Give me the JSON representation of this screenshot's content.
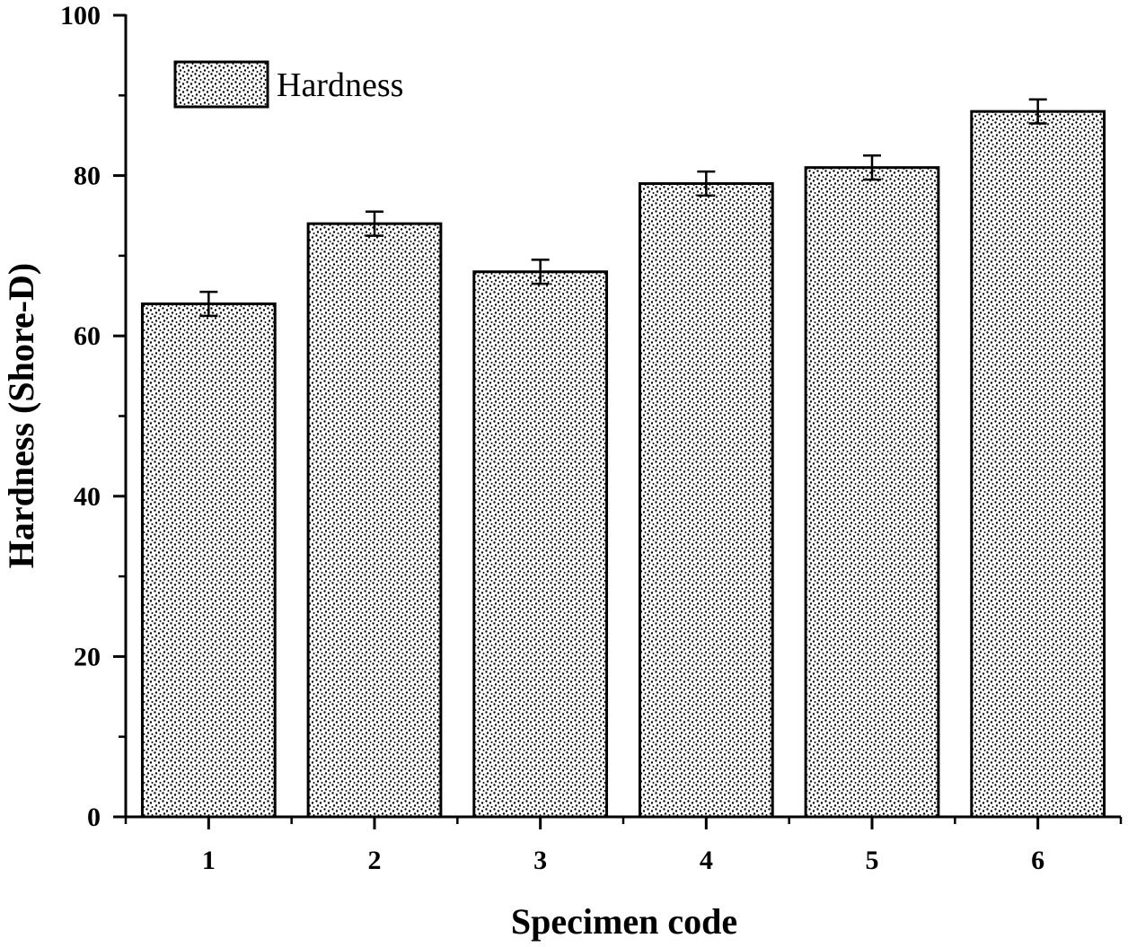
{
  "chart_data": {
    "type": "bar",
    "xlabel": "Specimen code",
    "ylabel": "Hardness (Shore-D)",
    "ylim": [
      0,
      100
    ],
    "yticks": [
      0,
      20,
      40,
      60,
      80,
      100
    ],
    "categories": [
      "1",
      "2",
      "3",
      "4",
      "5",
      "6"
    ],
    "series": [
      {
        "name": "Hardness",
        "values": [
          64,
          74,
          68,
          79,
          81,
          88
        ],
        "errors": [
          1.5,
          1.5,
          1.5,
          1.5,
          1.5,
          1.5
        ]
      }
    ],
    "legend": "top-left",
    "grid": false,
    "fill_pattern": "stippled dots",
    "colors": {
      "bar_fill": "#ffffff",
      "stipple": "#000000",
      "stroke": "#000000"
    }
  }
}
